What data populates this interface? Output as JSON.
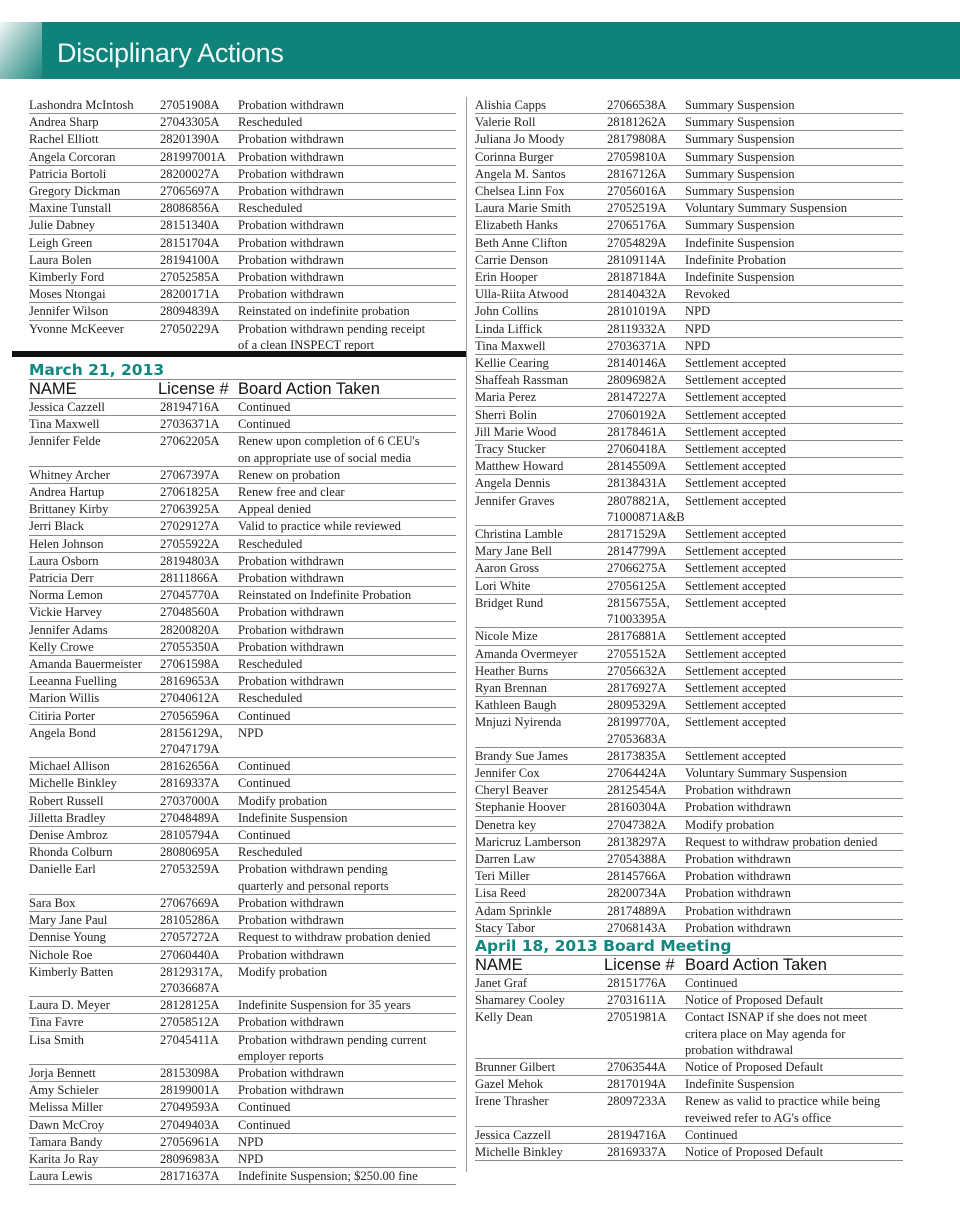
{
  "header": {
    "title": "Disciplinary Actions",
    "accent": "#0f827a"
  },
  "columns": {
    "name": "NAME",
    "license": "License #",
    "action": "Board Action Taken"
  },
  "left_top": [
    {
      "name": "Lashondra McIntosh",
      "license": "27051908A",
      "action": "Probation withdrawn"
    },
    {
      "name": "Andrea Sharp",
      "license": "27043305A",
      "action": "Rescheduled"
    },
    {
      "name": "Rachel Elliott",
      "license": "28201390A",
      "action": "Probation withdrawn"
    },
    {
      "name": "Angela Corcoran",
      "license": "281997001A",
      "action": "Probation withdrawn"
    },
    {
      "name": "Patricia Bortoli",
      "license": "28200027A",
      "action": "Probation withdrawn"
    },
    {
      "name": "Gregory Dickman",
      "license": "27065697A",
      "action": "Probation withdrawn"
    },
    {
      "name": "Maxine Tunstall",
      "license": "28086856A",
      "action": "Rescheduled"
    },
    {
      "name": "Julie Dabney",
      "license": "28151340A",
      "action": "Probation withdrawn"
    },
    {
      "name": "Leigh Green",
      "license": "28151704A",
      "action": "Probation withdrawn"
    },
    {
      "name": "Laura Bolen",
      "license": "28194100A",
      "action": "Probation withdrawn"
    },
    {
      "name": "Kimberly Ford",
      "license": "27052585A",
      "action": "Probation withdrawn"
    },
    {
      "name": "Moses Ntongai",
      "license": "28200171A",
      "action": "Probation withdrawn"
    },
    {
      "name": "Jennifer Wilson",
      "license": "28094839A",
      "action": "Reinstated on indefinite probation"
    },
    {
      "name": "Yvonne McKeever",
      "license": "27050229A",
      "action": "Probation withdrawn pending receipt\nof a clean INSPECT report"
    }
  ],
  "march": {
    "title": "March 21, 2013",
    "rows": [
      {
        "name": "Jessica Cazzell",
        "license": "28194716A",
        "action": "Continued"
      },
      {
        "name": "Tina Maxwell",
        "license": "27036371A",
        "action": "Continued"
      },
      {
        "name": "Jennifer Felde",
        "license": "27062205A",
        "action": "Renew upon completion of 6 CEU's\non appropriate use of social media"
      },
      {
        "name": "Whitney Archer",
        "license": "27067397A",
        "action": "Renew on probation"
      },
      {
        "name": "Andrea Hartup",
        "license": "27061825A",
        "action": "Renew free and clear"
      },
      {
        "name": "Brittaney Kirby",
        "license": "27063925A",
        "action": "Appeal denied"
      },
      {
        "name": "Jerri Black",
        "license": "27029127A",
        "action": "Valid to practice while reviewed"
      },
      {
        "name": "Helen Johnson",
        "license": "27055922A",
        "action": "Rescheduled"
      },
      {
        "name": "Laura Osborn",
        "license": "28194803A",
        "action": "Probation withdrawn"
      },
      {
        "name": "Patricia Derr",
        "license": "28111866A",
        "action": "Probation withdrawn"
      },
      {
        "name": "Norma Lemon",
        "license": "27045770A",
        "action": "Reinstated on Indefinite Probation"
      },
      {
        "name": "Vickie Harvey",
        "license": "27048560A",
        "action": "Probation withdrawn"
      },
      {
        "name": "Jennifer Adams",
        "license": "28200820A",
        "action": "Probation withdrawn"
      },
      {
        "name": "Kelly Crowe",
        "license": "27055350A",
        "action": "Probation withdrawn"
      },
      {
        "name": "Amanda Bauermeister",
        "license": "27061598A",
        "action": "Rescheduled"
      },
      {
        "name": "Leeanna Fuelling",
        "license": "28169653A",
        "action": "Probation withdrawn"
      },
      {
        "name": "Marion Willis",
        "license": "27040612A",
        "action": "Rescheduled"
      },
      {
        "name": "Citiria Porter",
        "license": "27056596A",
        "action": "Continued"
      },
      {
        "name": "Angela Bond",
        "license": "28156129A,\n27047179A",
        "action": "NPD"
      },
      {
        "name": "Michael Allison",
        "license": "28162656A",
        "action": "Continued"
      },
      {
        "name": "Michelle Binkley",
        "license": "28169337A",
        "action": "Continued"
      },
      {
        "name": "Robert Russell",
        "license": "27037000A",
        "action": "Modify probation"
      },
      {
        "name": "Jilletta Bradley",
        "license": "27048489A",
        "action": "Indefinite Suspension"
      },
      {
        "name": "Denise Ambroz",
        "license": "28105794A",
        "action": "Continued"
      },
      {
        "name": "Rhonda Colburn",
        "license": "28080695A",
        "action": "Rescheduled"
      },
      {
        "name": "Danielle Earl",
        "license": "27053259A",
        "action": "Probation withdrawn pending\nquarterly and personal reports"
      },
      {
        "name": "Sara Box",
        "license": "27067669A",
        "action": "Probation withdrawn"
      },
      {
        "name": "Mary Jane Paul",
        "license": "28105286A",
        "action": "Probation withdrawn"
      },
      {
        "name": "Dennise Young",
        "license": "27057272A",
        "action": "Request to withdraw probation denied"
      },
      {
        "name": "Nichole Roe",
        "license": "27060440A",
        "action": "Probation withdrawn"
      },
      {
        "name": "Kimberly Batten",
        "license": "28129317A,\n27036687A",
        "action": "Modify probation"
      },
      {
        "name": "Laura D. Meyer",
        "license": "28128125A",
        "action": "Indefinite Suspension for 35 years"
      },
      {
        "name": "Tina Favre",
        "license": "27058512A",
        "action": "Probation withdrawn"
      },
      {
        "name": "Lisa Smith",
        "license": "27045411A",
        "action": "Probation withdrawn pending current\nemployer reports"
      },
      {
        "name": "Jorja Bennett",
        "license": "28153098A",
        "action": "Probation withdrawn"
      },
      {
        "name": "Amy Schieler",
        "license": "28199001A",
        "action": "Probation withdrawn"
      },
      {
        "name": "Melissa Miller",
        "license": "27049593A",
        "action": "Continued"
      },
      {
        "name": "Dawn McCroy",
        "license": "27049403A",
        "action": "Continued"
      },
      {
        "name": "Tamara Bandy",
        "license": "27056961A",
        "action": "NPD"
      },
      {
        "name": "Karita Jo Ray",
        "license": "28096983A",
        "action": "NPD"
      },
      {
        "name": "Laura Lewis",
        "license": "28171637A",
        "action": "Indefinite Suspension; $250.00 fine"
      }
    ]
  },
  "right_top": [
    {
      "name": "Alishia Capps",
      "license": "27066538A",
      "action": "Summary Suspension"
    },
    {
      "name": "Valerie Roll",
      "license": "28181262A",
      "action": "Summary Suspension"
    },
    {
      "name": "Juliana Jo Moody",
      "license": "28179808A",
      "action": "Summary Suspension"
    },
    {
      "name": "Corinna Burger",
      "license": "27059810A",
      "action": "Summary Suspension"
    },
    {
      "name": "Angela M. Santos",
      "license": "28167126A",
      "action": "Summary Suspension"
    },
    {
      "name": "Chelsea Linn Fox",
      "license": "27056016A",
      "action": "Summary Suspension"
    },
    {
      "name": "Laura Marie Smith",
      "license": "27052519A",
      "action": "Voluntary Summary Suspension"
    },
    {
      "name": "Elizabeth Hanks",
      "license": "27065176A",
      "action": "Summary Suspension"
    },
    {
      "name": "Beth Anne Clifton",
      "license": "27054829A",
      "action": "Indefinite Suspension"
    },
    {
      "name": "Carrie Denson",
      "license": "28109114A",
      "action": "Indefinite Probation"
    },
    {
      "name": "Erin Hooper",
      "license": "28187184A",
      "action": "Indefinite Suspension"
    },
    {
      "name": "Ulla-Riita Atwood",
      "license": "28140432A",
      "action": "Revoked"
    },
    {
      "name": "John Collins",
      "license": "28101019A",
      "action": "NPD"
    },
    {
      "name": "Linda Liffick",
      "license": "28119332A",
      "action": "NPD"
    },
    {
      "name": "Tina Maxwell",
      "license": "27036371A",
      "action": "NPD"
    },
    {
      "name": "Kellie Cearing",
      "license": "28140146A",
      "action": "Settlement accepted"
    },
    {
      "name": "Shaffeah Rassman",
      "license": "28096982A",
      "action": "Settlement accepted"
    },
    {
      "name": "Maria Perez",
      "license": "28147227A",
      "action": "Settlement accepted"
    },
    {
      "name": "Sherri Bolin",
      "license": "27060192A",
      "action": "Settlement accepted"
    },
    {
      "name": "Jill Marie Wood",
      "license": "28178461A",
      "action": "Settlement accepted"
    },
    {
      "name": "Tracy Stucker",
      "license": "27060418A",
      "action": "Settlement accepted"
    },
    {
      "name": "Matthew Howard",
      "license": "28145509A",
      "action": "Settlement accepted"
    },
    {
      "name": "Angela Dennis",
      "license": "28138431A",
      "action": "Settlement accepted"
    },
    {
      "name": "Jennifer Graves",
      "license": "28078821A,\n71000871A&B",
      "action": "Settlement accepted"
    },
    {
      "name": "Christina Lamble",
      "license": "28171529A",
      "action": "Settlement accepted"
    },
    {
      "name": "Mary Jane Bell",
      "license": "28147799A",
      "action": "Settlement accepted"
    },
    {
      "name": "Aaron Gross",
      "license": "27066275A",
      "action": "Settlement accepted"
    },
    {
      "name": "Lori White",
      "license": "27056125A",
      "action": "Settlement accepted"
    },
    {
      "name": "Bridget Rund",
      "license": "28156755A,\n71003395A",
      "action": "Settlement accepted"
    },
    {
      "name": "Nicole Mize",
      "license": "28176881A",
      "action": "Settlement accepted"
    },
    {
      "name": "Amanda Overmeyer",
      "license": "27055152A",
      "action": "Settlement accepted"
    },
    {
      "name": "Heather Burns",
      "license": "27056632A",
      "action": "Settlement accepted"
    },
    {
      "name": "Ryan Brennan",
      "license": "28176927A",
      "action": "Settlement accepted"
    },
    {
      "name": "Kathleen Baugh",
      "license": "28095329A",
      "action": "Settlement accepted"
    },
    {
      "name": "Mnjuzi Nyirenda",
      "license": "28199770A,\n27053683A",
      "action": "Settlement accepted"
    },
    {
      "name": "Brandy Sue James",
      "license": "28173835A",
      "action": "Settlement accepted"
    },
    {
      "name": "Jennifer Cox",
      "license": "27064424A",
      "action": "Voluntary Summary Suspension"
    },
    {
      "name": "Cheryl Beaver",
      "license": "28125454A",
      "action": "Probation withdrawn"
    },
    {
      "name": "Stephanie Hoover",
      "license": "28160304A",
      "action": "Probation withdrawn"
    },
    {
      "name": "Denetra key",
      "license": "27047382A",
      "action": "Modify probation"
    },
    {
      "name": "Maricruz Lamberson",
      "license": "28138297A",
      "action": "Request to withdraw probation denied"
    },
    {
      "name": "Darren Law",
      "license": "27054388A",
      "action": "Probation withdrawn"
    },
    {
      "name": "Teri Miller",
      "license": "28145766A",
      "action": "Probation withdrawn"
    },
    {
      "name": "Lisa Reed",
      "license": "28200734A",
      "action": "Probation withdrawn"
    },
    {
      "name": "Adam Sprinkle",
      "license": "28174889A",
      "action": "Probation withdrawn"
    },
    {
      "name": "Stacy Tabor",
      "license": "27068143A",
      "action": "Probation withdrawn"
    }
  ],
  "april": {
    "title": "April 18, 2013 Board Meeting",
    "rows": [
      {
        "name": "Janet Graf",
        "license": "28151776A",
        "action": "Continued"
      },
      {
        "name": "Shamarey Cooley",
        "license": "27031611A",
        "action": "Notice of Proposed Default"
      },
      {
        "name": "Kelly Dean",
        "license": "27051981A",
        "action": "Contact ISNAP if she does not meet\ncritera place on May agenda for\nprobation withdrawal"
      },
      {
        "name": "Brunner Gilbert",
        "license": "27063544A",
        "action": "Notice of Proposed Default"
      },
      {
        "name": "Gazel Mehok",
        "license": "28170194A",
        "action": "Indefinite Suspension"
      },
      {
        "name": "Irene Thrasher",
        "license": "28097233A",
        "action": "Renew as valid to practice while being\nreveiwed refer to AG's office"
      },
      {
        "name": "Jessica Cazzell",
        "license": "28194716A",
        "action": "Continued"
      },
      {
        "name": "Michelle Binkley",
        "license": "28169337A",
        "action": "Notice of Proposed Default"
      }
    ]
  }
}
